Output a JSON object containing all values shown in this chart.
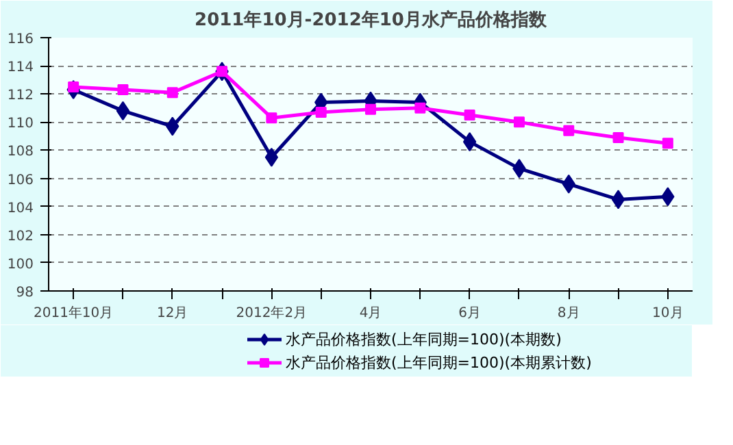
{
  "chart_data": {
    "type": "line",
    "title": "2011年10月-2012年10月水产品价格指数",
    "categories": [
      "2011年10月",
      null,
      "12月",
      null,
      "2012年2月",
      null,
      "4月",
      null,
      "6月",
      null,
      "8月",
      null,
      "10月"
    ],
    "series": [
      {
        "name": "水产品价格指数(上年同期=100)(本期数)",
        "color": "#000080",
        "marker": "diamond",
        "values": [
          112.3,
          110.8,
          109.7,
          113.6,
          107.5,
          111.4,
          111.5,
          111.4,
          108.6,
          106.7,
          105.6,
          104.5,
          104.7
        ]
      },
      {
        "name": "水产品价格指数(上年同期=100)(本期累计数)",
        "color": "#ff00ff",
        "marker": "square",
        "values": [
          112.5,
          112.3,
          112.1,
          113.6,
          110.3,
          110.7,
          110.9,
          111.0,
          110.5,
          110.0,
          109.4,
          108.9,
          108.5
        ]
      }
    ],
    "ylim": [
      98,
      116
    ],
    "yticks": [
      98,
      100,
      102,
      104,
      106,
      108,
      110,
      112,
      114,
      116
    ],
    "grid": "y",
    "legend": "bottom",
    "line_style": "solid"
  }
}
